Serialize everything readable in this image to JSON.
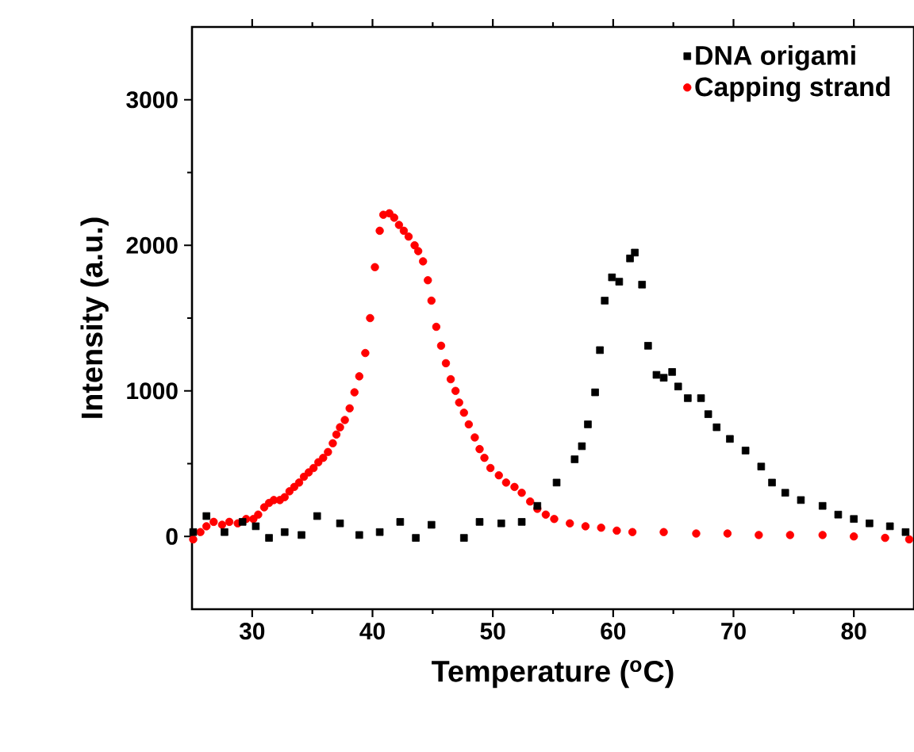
{
  "chart_data": {
    "type": "scatter",
    "xlabel": "Temperature ($^{o}$C)",
    "ylabel": "Intensity (a.u.)",
    "xlim": [
      25,
      85
    ],
    "ylim": [
      -500,
      3500
    ],
    "xticks": [
      30,
      40,
      50,
      60,
      70,
      80
    ],
    "yticks": [
      0,
      1000,
      2000,
      3000
    ],
    "legend": "top right",
    "grid": false,
    "series": [
      {
        "name": "DNA origami",
        "color": "#000000",
        "marker": "square",
        "x": [
          25.1,
          26.2,
          27.7,
          29.2,
          30.3,
          31.4,
          32.7,
          34.1,
          35.4,
          37.3,
          38.9,
          40.6,
          42.3,
          43.6,
          44.9,
          47.6,
          48.9,
          50.7,
          52.4,
          53.7,
          55.3,
          56.8,
          57.4,
          57.9,
          58.5,
          58.9,
          59.3,
          59.9,
          60.5,
          61.4,
          61.8,
          62.4,
          62.9,
          63.6,
          64.2,
          64.9,
          65.4,
          66.2,
          67.3,
          67.9,
          68.6,
          69.7,
          71.0,
          72.3,
          73.2,
          74.3,
          75.6,
          77.4,
          78.7,
          80.0,
          81.3,
          83.0,
          84.3
        ],
        "values": [
          30,
          140,
          30,
          100,
          70,
          -10,
          30,
          10,
          140,
          90,
          10,
          30,
          100,
          -10,
          80,
          -10,
          100,
          90,
          100,
          210,
          370,
          530,
          620,
          770,
          990,
          1280,
          1620,
          1780,
          1750,
          1910,
          1950,
          1730,
          1310,
          1110,
          1090,
          1130,
          1030,
          950,
          950,
          840,
          750,
          670,
          590,
          480,
          370,
          300,
          250,
          210,
          150,
          120,
          90,
          70,
          30
        ]
      },
      {
        "name": "Capping strand",
        "color": "#ff0000",
        "marker": "circle",
        "x": [
          25.1,
          25.7,
          26.2,
          26.8,
          27.5,
          28.1,
          28.8,
          29.5,
          30.1,
          30.5,
          31.0,
          31.4,
          31.8,
          32.3,
          32.7,
          33.1,
          33.5,
          33.9,
          34.3,
          34.7,
          35.1,
          35.5,
          35.9,
          36.3,
          36.7,
          37.0,
          37.3,
          37.7,
          38.1,
          38.5,
          38.9,
          39.4,
          39.8,
          40.2,
          40.6,
          40.9,
          41.4,
          41.8,
          42.2,
          42.6,
          43.0,
          43.5,
          43.8,
          44.2,
          44.6,
          44.9,
          45.3,
          45.7,
          46.1,
          46.5,
          46.9,
          47.2,
          47.6,
          48.0,
          48.5,
          48.9,
          49.3,
          49.8,
          50.5,
          51.1,
          51.8,
          52.4,
          53.1,
          53.7,
          54.4,
          55.1,
          56.4,
          57.7,
          59.0,
          60.3,
          61.6,
          64.2,
          66.9,
          69.5,
          72.1,
          74.7,
          77.4,
          80.0,
          82.6,
          84.6
        ],
        "values": [
          -20,
          30,
          70,
          100,
          80,
          100,
          90,
          120,
          120,
          150,
          200,
          230,
          250,
          250,
          270,
          310,
          340,
          370,
          410,
          440,
          470,
          510,
          540,
          580,
          640,
          700,
          750,
          800,
          880,
          990,
          1100,
          1260,
          1500,
          1850,
          2100,
          2210,
          2220,
          2190,
          2140,
          2100,
          2060,
          2000,
          1960,
          1890,
          1760,
          1620,
          1440,
          1310,
          1190,
          1080,
          1000,
          920,
          850,
          770,
          680,
          600,
          540,
          470,
          420,
          370,
          340,
          300,
          240,
          190,
          150,
          120,
          90,
          70,
          60,
          40,
          30,
          30,
          20,
          20,
          10,
          10,
          10,
          0,
          -10,
          -20
        ]
      }
    ]
  }
}
